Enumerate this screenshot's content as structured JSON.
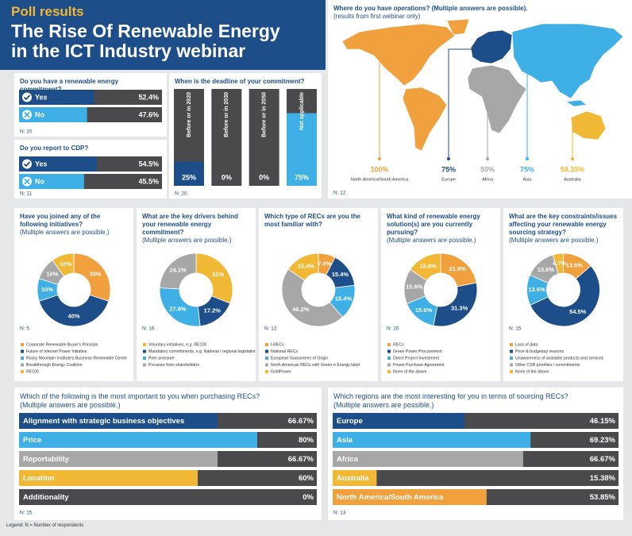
{
  "header": {
    "kicker": "Poll results",
    "title": "The Rise Of Renewable Energy\nin the ICT Industry webinar"
  },
  "chart_data": [
    {
      "type": "map",
      "title": "Where do you have operations? (Multiple answers are possible).",
      "subtitle": "(results from first webinar only)",
      "categories": [
        "North America/South America",
        "Europe",
        "Africa",
        "Asia",
        "Australia"
      ],
      "values": [
        100,
        75,
        50,
        75,
        58.33
      ],
      "value_labels": [
        "100%",
        "75%",
        "50%",
        "75%",
        "58.33%"
      ],
      "colors": [
        "#f0a13e",
        "#1d4e89",
        "#a7a7a7",
        "#3eb0e6",
        "#f1b835"
      ],
      "note": "N: 12"
    },
    {
      "type": "hbar",
      "title": "Do you have a renewable energy commitment?",
      "categories": [
        "Yes",
        "No"
      ],
      "values": [
        52.4,
        47.6
      ],
      "value_labels": [
        "52.4%",
        "47.6%"
      ],
      "colors": [
        "#1d4e89",
        "#3eb0e6"
      ],
      "xlim": [
        0,
        100
      ],
      "note": "N: 20"
    },
    {
      "type": "hbar",
      "title": "Do you report to CDP?",
      "categories": [
        "Yes",
        "No"
      ],
      "values": [
        54.5,
        45.5
      ],
      "value_labels": [
        "54.5%",
        "45.5%"
      ],
      "colors": [
        "#1d4e89",
        "#3eb0e6"
      ],
      "xlim": [
        0,
        100
      ],
      "note": "N: 11"
    },
    {
      "type": "column",
      "title": "When is the deadline of your commitment?",
      "categories": [
        "Before or in 2020",
        "Before or in 2030",
        "Before or in 2050",
        "Not applicable"
      ],
      "values": [
        25,
        0,
        0,
        75
      ],
      "value_labels": [
        "25%",
        "0%",
        "0%",
        "75%"
      ],
      "colors": [
        "#1d4e89",
        "#1d4e89",
        "#1d4e89",
        "#3eb0e6"
      ],
      "ylim": [
        0,
        100
      ],
      "note": "N: 20"
    },
    {
      "type": "donut",
      "title": "Have you joined any of the following initiatives?",
      "subtitle": "(Multiple answers are possible.)",
      "categories": [
        "Corporate Renewable Buyer's Principle",
        "Future of Internet Power Initiative",
        "Rocky Mountain Institute's Business Renewable Center",
        "Breakthrough Energy Coalition",
        "RE100"
      ],
      "values": [
        30,
        40,
        10,
        10,
        10
      ],
      "value_labels": [
        "30%",
        "40%",
        "10%",
        "10%",
        "10%"
      ],
      "colors": [
        "#f0a13e",
        "#1d4e89",
        "#3eb0e6",
        "#a7a7a7",
        "#f1b835"
      ],
      "note": "N: 5"
    },
    {
      "type": "donut",
      "title": "What are the key drivers behind your renewable energy commitment?",
      "subtitle": "(Multiple answers are possible.)",
      "categories": [
        "Voluntary initiatives, e.g. RE100",
        "Mandatory commitments, e.g. National / regional legislation",
        "Peer pressure",
        "Pressure from shareholders"
      ],
      "values": [
        31,
        17.2,
        27.6,
        24.1
      ],
      "value_labels": [
        "31%",
        "17.2%",
        "27.6%",
        "24.1%"
      ],
      "colors": [
        "#f1b835",
        "#1d4e89",
        "#3eb0e6",
        "#a7a7a7"
      ],
      "note": "N: 16"
    },
    {
      "type": "donut",
      "title": "Which type of RECs are you the most familiar with?",
      "categories": [
        "I-RECs",
        "National RECs",
        "European Guarantees of Origin",
        "North American RECs with Green-e Energy label",
        "GoldPower"
      ],
      "values": [
        7.6,
        15.4,
        15.4,
        46.2,
        15.4
      ],
      "value_labels": [
        "7.6%",
        "15.4%",
        "15.4%",
        "46.2%",
        "15.4%"
      ],
      "colors": [
        "#f0a13e",
        "#1d4e89",
        "#3eb0e6",
        "#a7a7a7",
        "#f1b835"
      ],
      "note": "N: 12"
    },
    {
      "type": "donut",
      "title": "What kind of renewable energy solution(s) are you currently pursuing?",
      "subtitle": "(Multiple answers are possible.)",
      "categories": [
        "RECs",
        "Green Power Procurement",
        "Direct Project Investment",
        "Power Purchase Agreement",
        "None of the above"
      ],
      "values": [
        21.9,
        31.3,
        15.6,
        15.6,
        15.6
      ],
      "value_labels": [
        "21.9%",
        "31.3%",
        "15.6%",
        "15.6%",
        "15.6%"
      ],
      "colors": [
        "#f0a13e",
        "#1d4e89",
        "#3eb0e6",
        "#a7a7a7",
        "#f1b835"
      ],
      "note": "N: 20"
    },
    {
      "type": "donut",
      "title": "What are the key constraints/issues affecting your renewable energy sourcing strategy?",
      "subtitle": "(Multiple answers are possible.)",
      "categories": [
        "Lack of data",
        "Price & budgetary reasons",
        "Unawareness of available products and services",
        "Other CSR priorities / commitments",
        "None of the above"
      ],
      "values": [
        13.6,
        54.5,
        13.6,
        13.6,
        4.7
      ],
      "value_labels": [
        "13.6%",
        "54.5%",
        "13.6%",
        "13.6%",
        "4.7%"
      ],
      "colors": [
        "#f0a13e",
        "#1d4e89",
        "#3eb0e6",
        "#a7a7a7",
        "#f1b835"
      ],
      "note": "N: 15"
    },
    {
      "type": "hbar",
      "title": "Which of the following is the most important to you when purchasing RECs?",
      "subtitle": "(Multiple answers are possible.)",
      "categories": [
        "Alignment with strategic business objectives",
        "Price",
        "Reportability",
        "Location",
        "Additionality"
      ],
      "values": [
        66.67,
        80,
        66.67,
        60,
        0
      ],
      "value_labels": [
        "66.67%",
        "80%",
        "66.67%",
        "60%",
        "0%"
      ],
      "colors": [
        "#1d4e89",
        "#3eb0e6",
        "#a7a7a7",
        "#f1b835",
        "#1d4e89"
      ],
      "xlim": [
        0,
        100
      ],
      "note": "N: 15"
    },
    {
      "type": "hbar",
      "title": "Which regions are the most interesting for you in terms of sourcing RECs?",
      "subtitle": "(Multiple answers are possible.)",
      "categories": [
        "Europe",
        "Asia",
        "Africa",
        "Australia",
        "North America/South America"
      ],
      "values": [
        46.15,
        69.23,
        66.67,
        15.38,
        53.85
      ],
      "value_labels": [
        "46.15%",
        "69.23%",
        "66.67%",
        "15.38%",
        "53.85%"
      ],
      "colors": [
        "#1d4e89",
        "#3eb0e6",
        "#a7a7a7",
        "#f1b835",
        "#f0a13e"
      ],
      "xlim": [
        0,
        100
      ],
      "note": "N: 13"
    }
  ],
  "footer": "Legend: N = Number of respondents"
}
